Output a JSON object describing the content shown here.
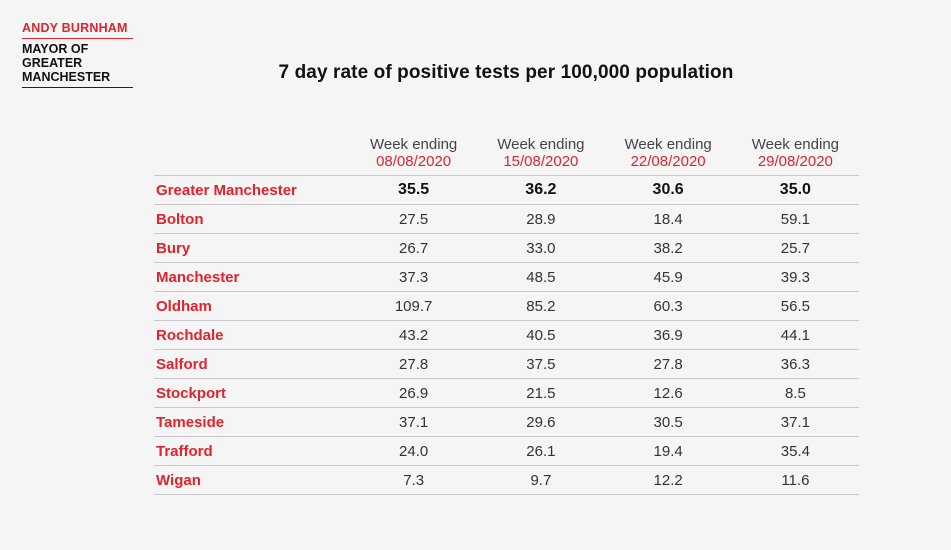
{
  "header": {
    "name": "ANDY BURNHAM",
    "role_line1": "MAYOR OF",
    "role_line2": "GREATER",
    "role_line3": "MANCHESTER"
  },
  "title": "7 day rate of positive tests per 100,000 population",
  "columns": [
    {
      "label": "Week ending",
      "date": "08/08/2020"
    },
    {
      "label": "Week ending",
      "date": "15/08/2020"
    },
    {
      "label": "Week ending",
      "date": "22/08/2020"
    },
    {
      "label": "Week ending",
      "date": "29/08/2020"
    }
  ],
  "rows": [
    {
      "area": "Greater Manchester",
      "values": [
        "35.5",
        "36.2",
        "30.6",
        "35.0"
      ]
    },
    {
      "area": "Bolton",
      "values": [
        "27.5",
        "28.9",
        "18.4",
        "59.1"
      ]
    },
    {
      "area": "Bury",
      "values": [
        "26.7",
        "33.0",
        "38.2",
        "25.7"
      ]
    },
    {
      "area": "Manchester",
      "values": [
        "37.3",
        "48.5",
        "45.9",
        "39.3"
      ]
    },
    {
      "area": "Oldham",
      "values": [
        "109.7",
        "85.2",
        "60.3",
        "56.5"
      ]
    },
    {
      "area": "Rochdale",
      "values": [
        "43.2",
        "40.5",
        "36.9",
        "44.1"
      ]
    },
    {
      "area": "Salford",
      "values": [
        "27.8",
        "37.5",
        "27.8",
        "36.3"
      ]
    },
    {
      "area": "Stockport",
      "values": [
        "26.9",
        "21.5",
        "12.6",
        "8.5"
      ]
    },
    {
      "area": "Tameside",
      "values": [
        "37.1",
        "29.6",
        "30.5",
        "37.1"
      ]
    },
    {
      "area": "Trafford",
      "values": [
        "24.0",
        "26.1",
        "19.4",
        "35.4"
      ]
    },
    {
      "area": "Wigan",
      "values": [
        "7.3",
        "9.7",
        "12.2",
        "11.6"
      ]
    }
  ]
}
